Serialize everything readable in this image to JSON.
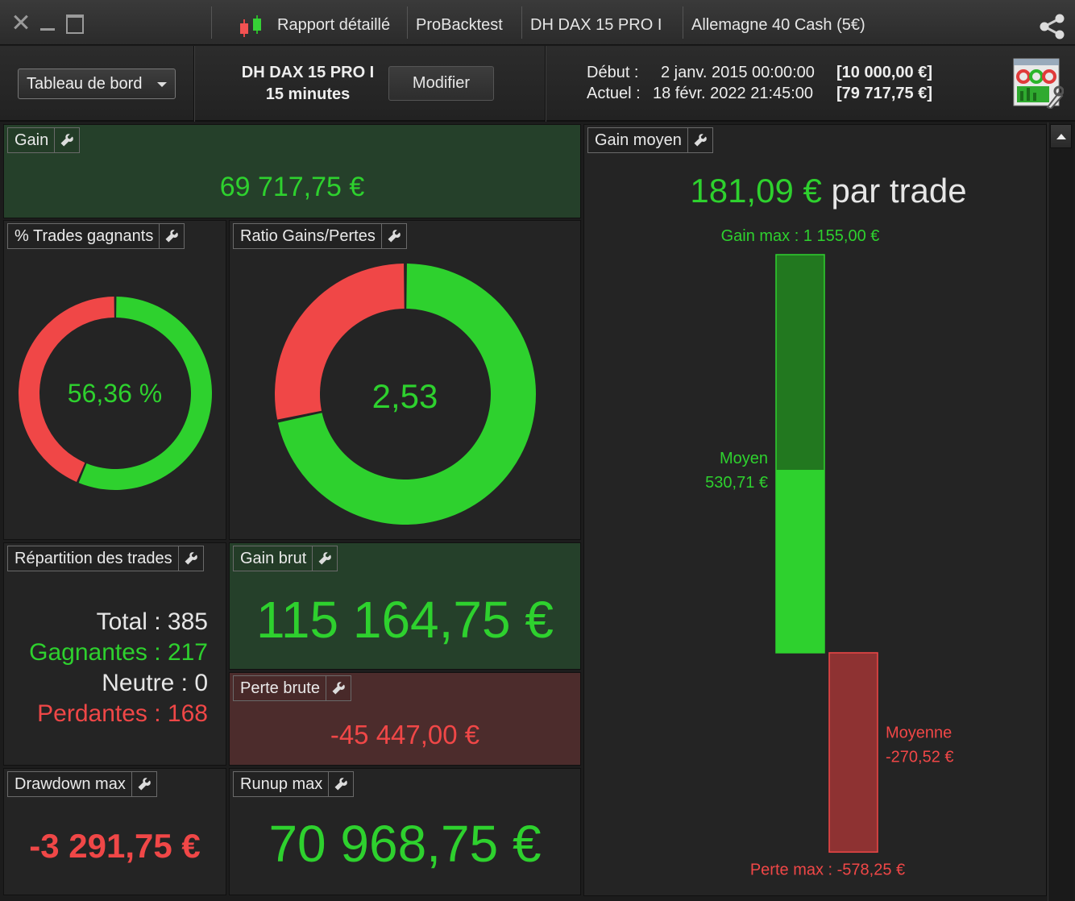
{
  "titlebar": {
    "report_label": "Rapport détaillé",
    "probacktest_label": "ProBacktest",
    "strategy_label": "DH DAX 15 PRO I",
    "instrument_label": "Allemagne 40 Cash (5€)"
  },
  "header": {
    "dashboard_select": "Tableau de bord",
    "strategy_name": "DH DAX 15 PRO I",
    "timeframe": "15 minutes",
    "modify_label": "Modifier",
    "start_label": "Début :",
    "start_date": "2 janv. 2015 00:00:00",
    "start_capital": "[10 000,00 €]",
    "current_label": "Actuel :",
    "current_date": "18 févr. 2022 21:45:00",
    "current_capital": "[79 717,75 €]"
  },
  "panels": {
    "gain": {
      "title": "Gain",
      "value": "69 717,75 €"
    },
    "winning_trades": {
      "title": "% Trades gagnants",
      "value": "56,36 %",
      "win_fraction": 0.5636
    },
    "gain_loss_ratio": {
      "title": "Ratio Gains/Pertes",
      "value": "2,53",
      "win_fraction": 0.7168
    },
    "distribution": {
      "title": "Répartition des trades",
      "total_label": "Total : 385",
      "winners_label": "Gagnantes : 217",
      "neutral_label": "Neutre : 0",
      "losers_label": "Perdantes : 168"
    },
    "gross_gain": {
      "title": "Gain brut",
      "value": "115 164,75 €"
    },
    "gross_loss": {
      "title": "Perte brute",
      "value": "-45 447,00 €"
    },
    "drawdown": {
      "title": "Drawdown max",
      "value": "-3 291,75 €"
    },
    "runup": {
      "title": "Runup max",
      "value": "70 968,75 €"
    },
    "avg_gain": {
      "title": "Gain moyen",
      "value": "181,09 €",
      "suffix": "par trade",
      "max_gain_label": "Gain max : 1 155,00 €",
      "avg_win_label": "Moyen",
      "avg_win_value": "530,71 €",
      "avg_loss_label": "Moyenne",
      "avg_loss_value": "-270,52 €",
      "max_loss_label": "Perte max : -578,25 €",
      "max_gain": 1155.0,
      "avg_win": 530.71,
      "avg_loss": -270.52,
      "max_loss": -578.25
    }
  },
  "colors": {
    "green": "#2ed12e",
    "red": "#f04747",
    "green_dark": "#22781f",
    "red_dark": "#8e3232",
    "panel_green": "#25402a",
    "panel_red": "#4c2c2c"
  },
  "icons": {
    "close": "close-icon",
    "minimize": "minimize-icon",
    "maximize": "maximize-icon",
    "candles": "candlestick-icon",
    "share": "share-icon",
    "settings": "dashboard-settings-icon",
    "wrench": "wrench-icon"
  }
}
